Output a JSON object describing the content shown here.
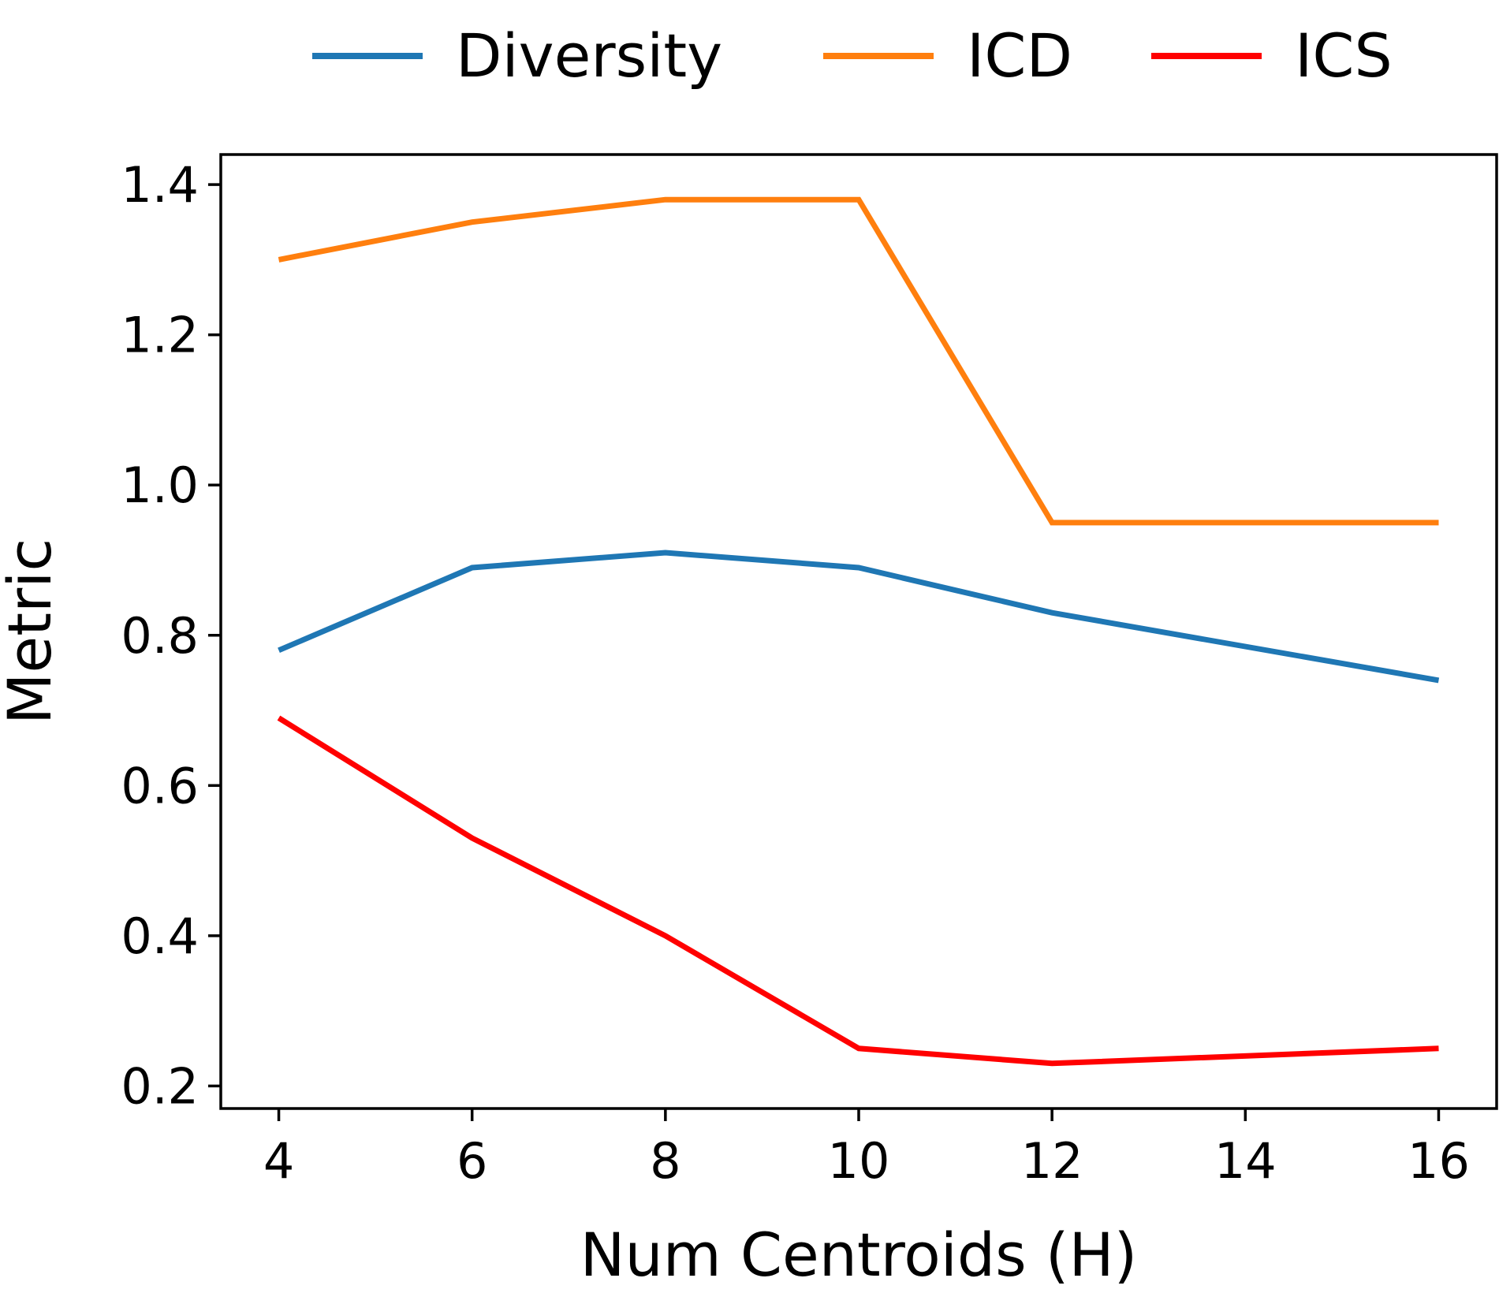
{
  "chart_data": {
    "type": "line",
    "title": "",
    "xlabel": "Num Centroids (H)",
    "ylabel": "Metric",
    "x": [
      4,
      6,
      8,
      10,
      12,
      16
    ],
    "xticks": [
      4,
      6,
      8,
      10,
      12,
      14,
      16
    ],
    "yticks": [
      0.2,
      0.4,
      0.6,
      0.8,
      1.0,
      1.2,
      1.4
    ],
    "ytick_labels": [
      "0.2",
      "0.4",
      "0.6",
      "0.8",
      "1.0",
      "1.2",
      "1.4"
    ],
    "xlim": [
      3.4,
      16.6
    ],
    "ylim": [
      0.17,
      1.44
    ],
    "grid": false,
    "legend_position": "top",
    "series": [
      {
        "name": "Diversity",
        "color": "#1f77b4",
        "values": [
          0.78,
          0.89,
          0.91,
          0.89,
          0.83,
          0.74
        ]
      },
      {
        "name": "ICD",
        "color": "#ff7f0e",
        "values": [
          1.3,
          1.35,
          1.38,
          1.38,
          0.95,
          0.95
        ]
      },
      {
        "name": "ICS",
        "color": "#ff0000",
        "values": [
          0.69,
          0.53,
          0.4,
          0.25,
          0.23,
          0.25
        ]
      }
    ]
  }
}
